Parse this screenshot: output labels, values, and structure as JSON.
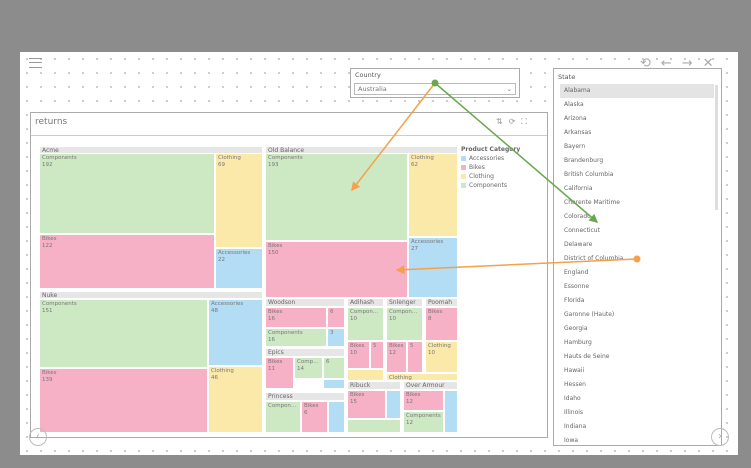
{
  "country_slicer": {
    "label": "Country",
    "selected": "Australia"
  },
  "state_slicer": {
    "label": "State",
    "items": [
      "Alabama",
      "Alaska",
      "Arizona",
      "Arkansas",
      "Bayern",
      "Brandenburg",
      "British Columbia",
      "California",
      "Charente Maritime",
      "Colorado",
      "Connecticut",
      "Delaware",
      "District of Columbia",
      "England",
      "Essonne",
      "Florida",
      "Garonne (Haute)",
      "Georgia",
      "Hamburg",
      "Hauts de Seine",
      "Hawaii",
      "Hessen",
      "Idaho",
      "Illinois",
      "Indiana",
      "Iowa"
    ]
  },
  "visual": {
    "title": "returns",
    "legend": {
      "title": "Product Category",
      "items": [
        {
          "name": "Accessories",
          "color": "#b3dcf5"
        },
        {
          "name": "Bikes",
          "color": "#f7b1c7"
        },
        {
          "name": "Clothing",
          "color": "#fbe9a9"
        },
        {
          "name": "Components",
          "color": "#cde9c3"
        }
      ]
    },
    "groups": [
      {
        "name": "Acme",
        "cells": [
          {
            "category": "Components",
            "value": 192
          },
          {
            "category": "Clothing",
            "value": 69
          },
          {
            "category": "Bikes",
            "value": 122
          },
          {
            "category": "Accessories",
            "value": 22
          }
        ]
      },
      {
        "name": "Old Balance",
        "cells": [
          {
            "category": "Components",
            "value": 193
          },
          {
            "category": "Clothing",
            "value": 62
          },
          {
            "category": "Bikes",
            "value": 150
          },
          {
            "category": "Accessories",
            "value": 27
          }
        ]
      },
      {
        "name": "Nuke",
        "cells": [
          {
            "category": "Components",
            "value": 151
          },
          {
            "category": "Accessories",
            "value": 48
          },
          {
            "category": "Bikes",
            "value": 139
          },
          {
            "category": "Clothing",
            "value": 46
          }
        ]
      },
      {
        "name": "Woodson",
        "cells": [
          {
            "category": "Bikes",
            "value": 16
          },
          {
            "value": 6
          },
          {
            "category": "Components",
            "value": 16
          },
          {
            "value": 3
          }
        ]
      },
      {
        "name": "Epics",
        "cells": [
          {
            "category": "Bikes",
            "value": 11
          },
          {
            "category": "Components",
            "value": 14
          },
          {
            "value": 6
          }
        ]
      },
      {
        "name": "Princess",
        "cells": [
          {
            "category": "Components"
          },
          {
            "category": "Bikes",
            "value": 6
          }
        ]
      },
      {
        "name": "Adihash",
        "cells": [
          {
            "category": "Components",
            "value": 10
          },
          {
            "category": "Bikes",
            "value": 10
          },
          {
            "value": 5
          }
        ]
      },
      {
        "name": "Snlenger",
        "cells": [
          {
            "category": "Components",
            "value": 10
          },
          {
            "category": "Bikes",
            "value": 12
          },
          {
            "value": 5
          },
          {
            "category": "Clothing"
          }
        ]
      },
      {
        "name": "Poomah",
        "cells": [
          {
            "category": "Bikes",
            "value": 8
          },
          {
            "category": "Clothing",
            "value": 10
          }
        ]
      },
      {
        "name": "Ribuck",
        "cells": [
          {
            "category": "Bikes",
            "value": 15
          }
        ]
      },
      {
        "name": "Over Armour",
        "cells": [
          {
            "category": "Bikes",
            "value": 12
          },
          {
            "category": "Components",
            "value": 12
          }
        ]
      }
    ]
  }
}
